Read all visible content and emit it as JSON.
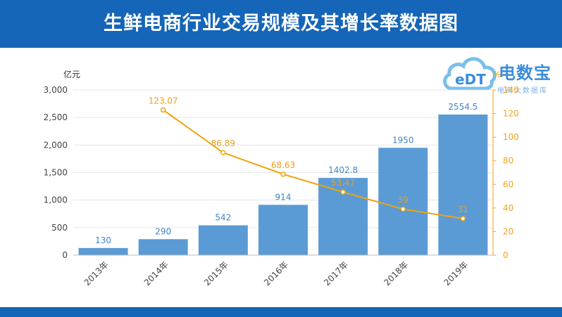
{
  "title": "生鲜电商行业交易规模及其增长率数据图",
  "logo": {
    "name": "电数宝",
    "subtitle": "电商大数据库",
    "mark": "eDT"
  },
  "colors": {
    "banner": "#1565b8",
    "bar": "#5b9bd5",
    "line": "#f0a30a",
    "bar_label": "#3d85c6",
    "line_label": "#e8a020"
  },
  "chart_data": {
    "type": "bar",
    "title": "生鲜电商行业交易规模及其增长率数据图",
    "categories": [
      "2013年",
      "2014年",
      "2015年",
      "2016年",
      "2017年",
      "2018年",
      "2019年"
    ],
    "series": [
      {
        "values": [
          130,
          290,
          542,
          914,
          1402.8,
          1950,
          2554.5
        ],
        "labels": [
          "130",
          "290",
          "542",
          "914",
          "1402.8",
          "1950",
          "2554.5"
        ],
        "type": "bar",
        "axis": "left"
      },
      {
        "values": [
          null,
          123.07,
          86.89,
          68.63,
          53.47,
          39,
          31
        ],
        "labels": [
          "",
          "123.07",
          "86.89",
          "68.63",
          "53.47",
          "39",
          "31"
        ],
        "type": "line",
        "axis": "right"
      }
    ],
    "y_left": {
      "unit": "亿元",
      "ylim": [
        0,
        3000
      ],
      "ticks": [
        0,
        500,
        1000,
        1500,
        2000,
        2500,
        3000
      ],
      "tick_labels": [
        "0",
        "500",
        "1,000",
        "1,500",
        "2,000",
        "2,500",
        "3,000"
      ]
    },
    "y_right": {
      "unit": "%",
      "ylim": [
        0,
        140
      ],
      "ticks": [
        0,
        20,
        40,
        60,
        80,
        100,
        120,
        140
      ],
      "tick_labels": [
        "0",
        "20",
        "40",
        "60",
        "80",
        "100",
        "120",
        "140"
      ]
    },
    "grid": true,
    "legend": "none"
  }
}
